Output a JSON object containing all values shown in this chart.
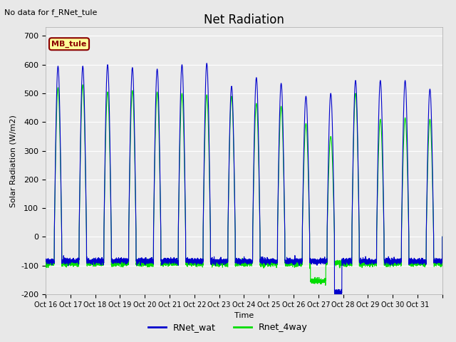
{
  "title": "Net Radiation",
  "top_left_text": "No data for f_RNet_tule",
  "ylabel": "Solar Radiation (W/m2)",
  "xlabel": "Time",
  "ylim": [
    -200,
    730
  ],
  "yticks": [
    -200,
    -100,
    0,
    100,
    200,
    300,
    400,
    500,
    600,
    700
  ],
  "xtick_labels": [
    "Oct 16",
    "Oct 17",
    "Oct 18",
    "Oct 19",
    "Oct 20",
    "Oct 21",
    "Oct 22",
    "Oct 23",
    "Oct 24",
    "Oct 25",
    "Oct 26",
    "Oct 27",
    "Oct 28",
    "Oct 29",
    "Oct 30",
    "Oct 31"
  ],
  "legend_labels": [
    "RNet_wat",
    "Rnet_4way"
  ],
  "line_color_wat": "#0000cc",
  "line_color_4way": "#00dd00",
  "annotation_text": "MB_tule",
  "annotation_color": "#8B0000",
  "annotation_bg": "#FFFF99",
  "fig_bg_color": "#e8e8e8",
  "plot_bg_color": "#ebebeb",
  "title_fontsize": 12,
  "axis_fontsize": 8,
  "n_days": 16,
  "pts_per_day": 288,
  "daily_peaks_wat": [
    595,
    595,
    600,
    590,
    585,
    600,
    605,
    525,
    555,
    535,
    490,
    500,
    545,
    545,
    545,
    515
  ],
  "daily_peaks_4way": [
    520,
    530,
    505,
    510,
    505,
    500,
    495,
    490,
    465,
    455,
    395,
    350,
    500,
    410,
    415,
    410
  ],
  "nighttime_wat": -85,
  "nighttime_4way": -93,
  "special_low_4way_day": 10,
  "special_low_4way_val": -155,
  "special_low_wat_day": 11,
  "special_low_wat_val": -195
}
